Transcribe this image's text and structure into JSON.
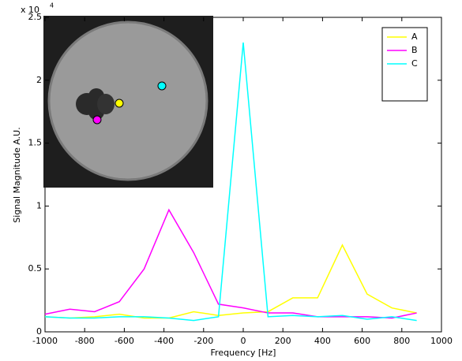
{
  "chart_data": {
    "type": "line",
    "xlabel": "Frequency [Hz]",
    "ylabel": "Signal Magnitude A.U.",
    "y_multiplier": {
      "base": "x 10",
      "exponent": "4"
    },
    "x": [
      -1000,
      -875,
      -750,
      -625,
      -500,
      -375,
      -250,
      -125,
      0,
      125,
      250,
      375,
      500,
      625,
      750,
      875
    ],
    "series": [
      {
        "name": "A",
        "color": "#ffff00",
        "values": [
          0.12,
          0.11,
          0.12,
          0.14,
          0.11,
          0.11,
          0.16,
          0.13,
          0.15,
          0.16,
          0.27,
          0.27,
          0.69,
          0.3,
          0.19,
          0.15
        ]
      },
      {
        "name": "B",
        "color": "#ff00ff",
        "values": [
          0.14,
          0.18,
          0.16,
          0.24,
          0.5,
          0.97,
          0.63,
          0.22,
          0.19,
          0.15,
          0.15,
          0.12,
          0.12,
          0.12,
          0.11,
          0.15
        ]
      },
      {
        "name": "C",
        "color": "#00ffff",
        "values": [
          0.12,
          0.11,
          0.11,
          0.12,
          0.12,
          0.11,
          0.09,
          0.12,
          2.3,
          0.12,
          0.13,
          0.12,
          0.13,
          0.1,
          0.12,
          0.09
        ]
      }
    ],
    "xlim": [
      -1000,
      1000
    ],
    "xticks": [
      -1000,
      -800,
      -600,
      -400,
      -200,
      0,
      200,
      400,
      600,
      800,
      1000
    ],
    "ylim": [
      0,
      2.5
    ],
    "yticks": [
      0,
      0.5,
      1,
      1.5,
      2,
      2.5
    ],
    "legend": "top-right"
  }
}
